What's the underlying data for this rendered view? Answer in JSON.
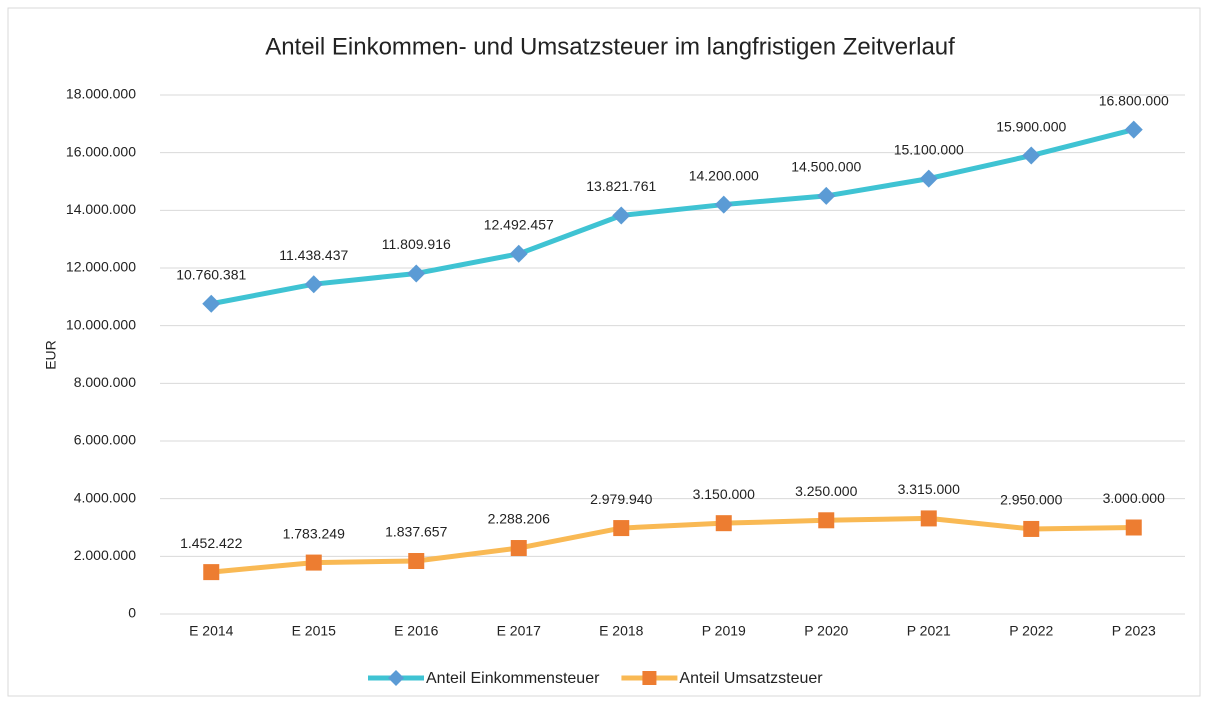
{
  "chart_data": {
    "type": "line",
    "title": "Anteil Einkommen- und Umsatzsteuer im langfristigen Zeitverlauf",
    "ylabel": "EUR",
    "categories": [
      "E 2014",
      "E 2015",
      "E 2016",
      "E 2017",
      "E 2018",
      "P 2019",
      "P 2020",
      "P 2021",
      "P 2022",
      "P 2023"
    ],
    "series": [
      {
        "name": "Anteil Einkommensteuer",
        "color": "#3fc3d3",
        "marker": "diamond",
        "marker_color": "#5b9bd5",
        "values": [
          10760381,
          11438437,
          11809916,
          12492457,
          13821761,
          14200000,
          14500000,
          15100000,
          15900000,
          16800000
        ],
        "value_labels": [
          "10.760.381",
          "11.438.437",
          "11.809.916",
          "12.492.457",
          "13.821.761",
          "14.200.000",
          "14.500.000",
          "15.100.000",
          "15.900.000",
          "16.800.000"
        ]
      },
      {
        "name": "Anteil Umsatzsteuer",
        "color": "#f9b954",
        "marker": "square",
        "marker_color": "#ed7d31",
        "values": [
          1452422,
          1783249,
          1837657,
          2288206,
          2979940,
          3150000,
          3250000,
          3315000,
          2950000,
          3000000
        ],
        "value_labels": [
          "1.452.422",
          "1.783.249",
          "1.837.657",
          "2.288.206",
          "2.979.940",
          "3.150.000",
          "3.250.000",
          "3.315.000",
          "2.950.000",
          "3.000.000"
        ]
      }
    ],
    "ylim": [
      0,
      18000000
    ],
    "yticks": [
      0,
      {
        "value": 2000000,
        "label": "2.000.000"
      },
      {
        "value": 4000000,
        "label": "4.000.000"
      },
      {
        "value": 6000000,
        "label": "6.000.000"
      },
      {
        "value": 8000000,
        "label": "8.000.000"
      },
      {
        "value": 10000000,
        "label": "10.000.000"
      },
      {
        "value": 12000000,
        "label": "12.000.000"
      },
      {
        "value": 14000000,
        "label": "14.000.000"
      },
      {
        "value": 16000000,
        "label": "16.000.000"
      },
      {
        "value": 18000000,
        "label": "18.000.000"
      }
    ],
    "grid": true,
    "legend": "bottom"
  }
}
